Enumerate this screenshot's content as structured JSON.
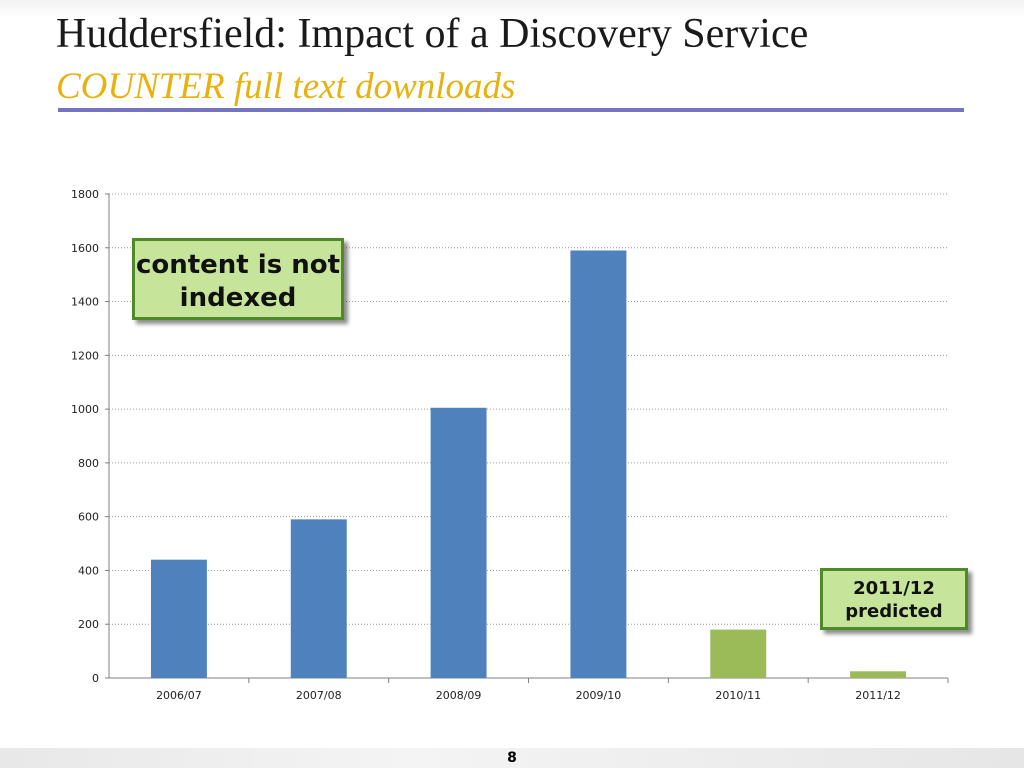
{
  "slide": {
    "title": "Huddersfield: Impact of a Discovery Service",
    "subtitle": "COUNTER full text downloads",
    "page_number": "8"
  },
  "callouts": {
    "content_not_indexed": "content is not indexed",
    "predicted": "2011/12 predicted"
  },
  "colors": {
    "actual_bar": "#4f81bd",
    "predicted_bar": "#9bbb59",
    "subtitle": "#e8b10e",
    "rule": "#7474c0",
    "callout_fill": "#c6e59a",
    "callout_border": "#4f8a2a"
  },
  "chart_data": {
    "type": "bar",
    "categories": [
      "2006/07",
      "2007/08",
      "2008/09",
      "2009/10",
      "2010/11",
      "2011/12"
    ],
    "values": [
      440,
      590,
      1005,
      1590,
      180,
      25
    ],
    "bar_colors": [
      "#4f81bd",
      "#4f81bd",
      "#4f81bd",
      "#4f81bd",
      "#9bbb59",
      "#9bbb59"
    ],
    "ylim": [
      0,
      1800
    ],
    "yticks": [
      0,
      200,
      400,
      600,
      800,
      1000,
      1200,
      1400,
      1600,
      1800
    ],
    "grid": true,
    "legend": "none",
    "title": "",
    "xlabel": "",
    "ylabel": ""
  }
}
